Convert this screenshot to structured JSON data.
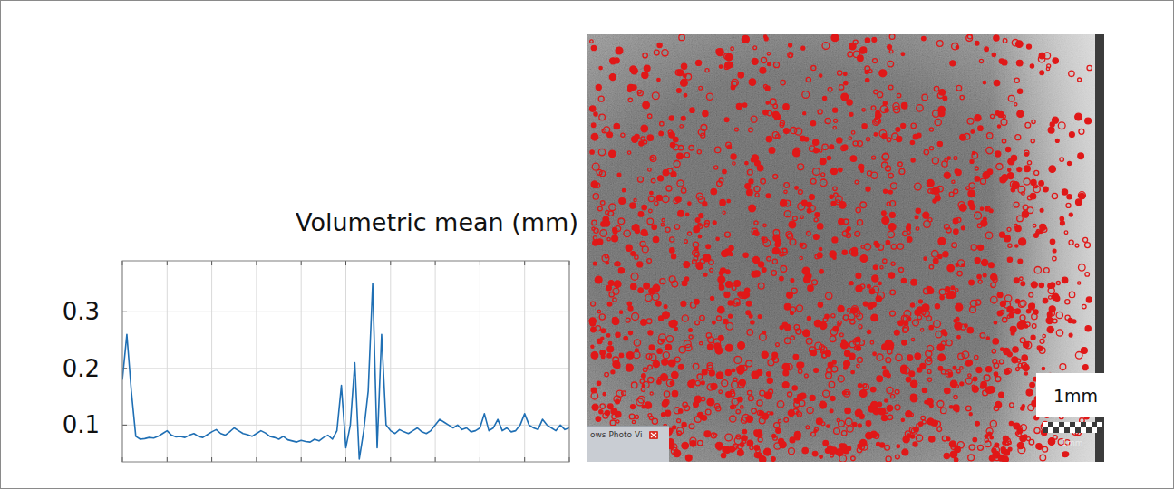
{
  "chart_data": {
    "type": "line",
    "title": "Volumetric mean (mm)",
    "x": [
      0,
      1,
      2,
      3,
      4,
      5,
      6,
      7,
      8,
      9,
      10,
      11,
      12,
      13,
      14,
      15,
      16,
      17,
      18,
      19,
      20,
      21,
      22,
      23,
      24,
      25,
      26,
      27,
      28,
      29,
      30,
      31,
      32,
      33,
      34,
      35,
      36,
      37,
      38,
      39,
      40,
      41,
      42,
      43,
      44,
      45,
      46,
      47,
      48,
      49,
      50,
      51,
      52,
      53,
      54,
      55,
      56,
      57,
      58,
      59,
      60,
      61,
      62,
      63,
      64,
      65,
      66,
      67,
      68,
      69,
      70,
      71,
      72,
      73,
      74,
      75,
      76,
      77,
      78,
      79,
      80,
      81,
      82,
      83,
      84,
      85,
      86,
      87,
      88,
      89,
      90,
      91,
      92,
      93,
      94,
      95,
      96,
      97,
      98,
      99,
      100
    ],
    "values": [
      0.18,
      0.26,
      0.16,
      0.08,
      0.075,
      0.076,
      0.078,
      0.077,
      0.08,
      0.085,
      0.09,
      0.082,
      0.079,
      0.08,
      0.078,
      0.082,
      0.085,
      0.08,
      0.078,
      0.083,
      0.088,
      0.092,
      0.085,
      0.082,
      0.088,
      0.095,
      0.09,
      0.085,
      0.083,
      0.08,
      0.085,
      0.09,
      0.086,
      0.08,
      0.078,
      0.075,
      0.08,
      0.074,
      0.072,
      0.07,
      0.073,
      0.071,
      0.07,
      0.075,
      0.072,
      0.078,
      0.082,
      0.075,
      0.09,
      0.17,
      0.06,
      0.1,
      0.21,
      0.04,
      0.09,
      0.16,
      0.35,
      0.06,
      0.26,
      0.1,
      0.09,
      0.085,
      0.092,
      0.088,
      0.085,
      0.09,
      0.095,
      0.088,
      0.085,
      0.09,
      0.1,
      0.11,
      0.105,
      0.1,
      0.095,
      0.1,
      0.092,
      0.095,
      0.088,
      0.09,
      0.095,
      0.12,
      0.09,
      0.095,
      0.11,
      0.09,
      0.095,
      0.088,
      0.09,
      0.1,
      0.12,
      0.1,
      0.095,
      0.092,
      0.11,
      0.1,
      0.095,
      0.09,
      0.1,
      0.092,
      0.095
    ],
    "color": "#1f6fb4",
    "xlim": [
      0,
      100
    ],
    "xticks": [
      0,
      10,
      20,
      30,
      40,
      50,
      60,
      70,
      80,
      90,
      100
    ],
    "ylim": [
      0.035,
      0.39
    ],
    "yticks": [
      0.1,
      0.2,
      0.3
    ],
    "grid": true,
    "tick_labels": "y"
  },
  "image": {
    "scale_label": "1mm",
    "scale_bar_label": "1mm",
    "window_tab": "ows Photo Vi"
  }
}
